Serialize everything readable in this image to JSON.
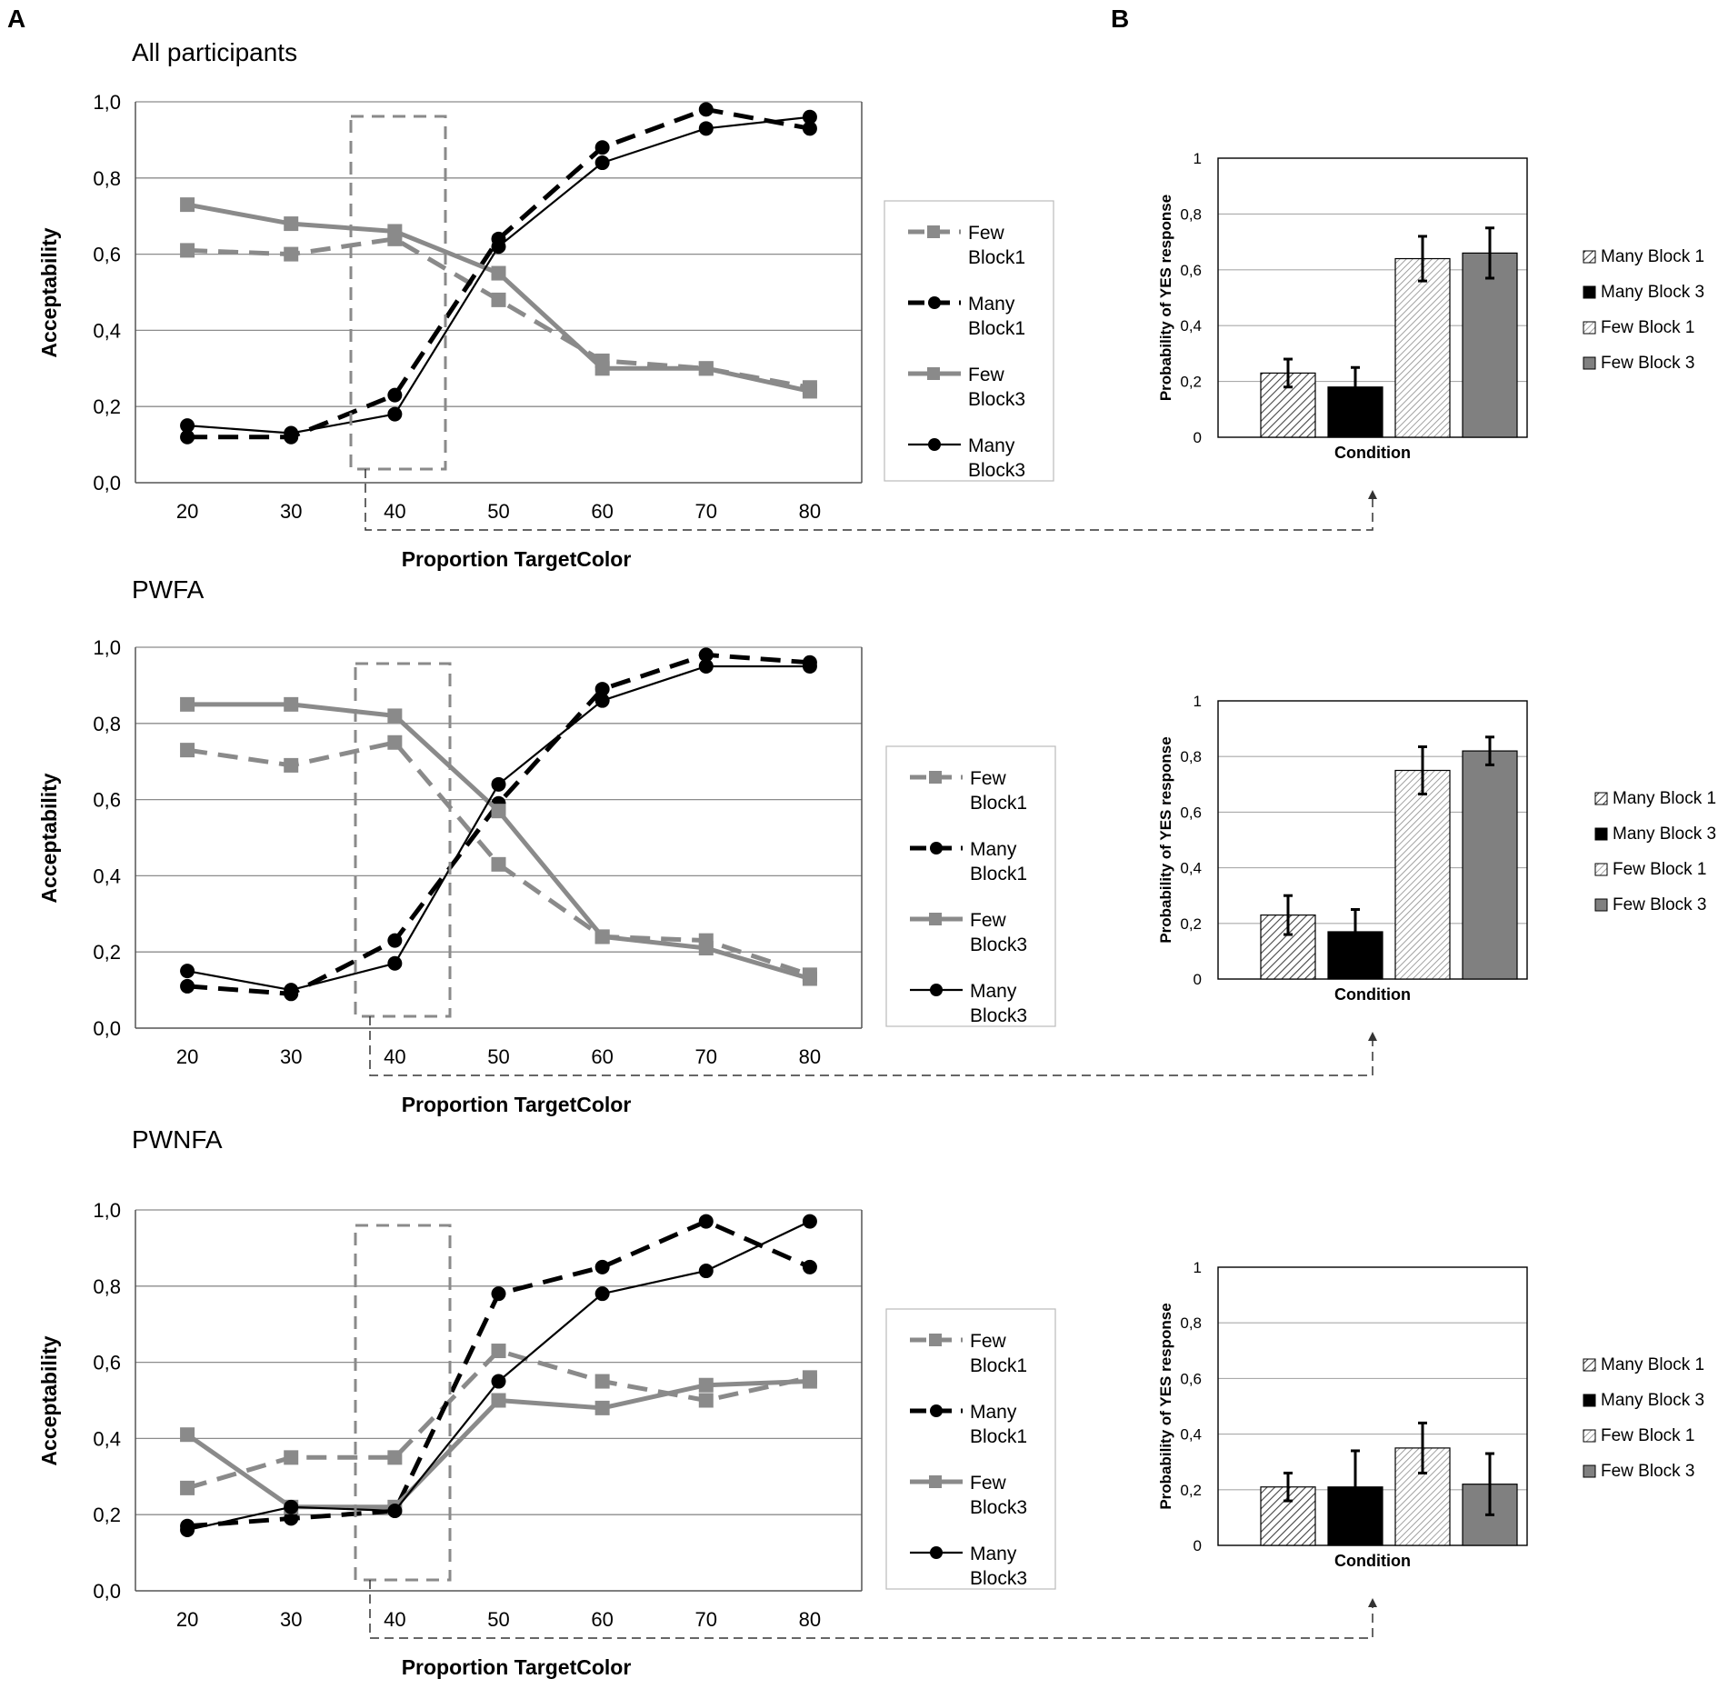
{
  "panel_labels": {
    "a": "A",
    "b": "B"
  },
  "colors": {
    "gray": "#8a8a8a",
    "black": "#000000",
    "grid": "#8c8c8c",
    "dashbox": "#8a8a8a",
    "bar_dark_gray": "#808080"
  },
  "chart_data": [
    {
      "type": "line",
      "id": "line-all",
      "title": "All participants",
      "xlabel": "Proportion TargetColor",
      "ylabel": "Acceptability",
      "categories": [
        "20",
        "30",
        "40",
        "50",
        "60",
        "70",
        "80"
      ],
      "ylim": [
        0,
        1
      ],
      "yticks": [
        "0,0",
        "0,2",
        "0,4",
        "0,6",
        "0,8",
        "1,0"
      ],
      "highlight_category": "40",
      "series": [
        {
          "name": "Few Block1",
          "legend": [
            "Few",
            "Block1"
          ],
          "values": [
            0.61,
            0.6,
            0.64,
            0.48,
            0.32,
            0.3,
            0.25
          ]
        },
        {
          "name": "Many Block1",
          "legend": [
            "Many",
            "Block1"
          ],
          "values": [
            0.12,
            0.12,
            0.23,
            0.64,
            0.88,
            0.98,
            0.93
          ]
        },
        {
          "name": "Few Block3",
          "legend": [
            "Few",
            "Block3"
          ],
          "values": [
            0.73,
            0.68,
            0.66,
            0.55,
            0.3,
            0.3,
            0.24
          ]
        },
        {
          "name": "Many Block3",
          "legend": [
            "Many",
            "Block3"
          ],
          "values": [
            0.15,
            0.13,
            0.18,
            0.62,
            0.84,
            0.93,
            0.96
          ]
        }
      ]
    },
    {
      "type": "line",
      "id": "line-pwfa",
      "title": "PWFA",
      "xlabel": "Proportion TargetColor",
      "ylabel": "Acceptability",
      "categories": [
        "20",
        "30",
        "40",
        "50",
        "60",
        "70",
        "80"
      ],
      "ylim": [
        0,
        1
      ],
      "yticks": [
        "0,0",
        "0,2",
        "0,4",
        "0,6",
        "0,8",
        "1,0"
      ],
      "highlight_category": "40",
      "series": [
        {
          "name": "Few Block1",
          "legend": [
            "Few",
            "Block1"
          ],
          "values": [
            0.73,
            0.69,
            0.75,
            0.43,
            0.24,
            0.23,
            0.14
          ]
        },
        {
          "name": "Many Block1",
          "legend": [
            "Many",
            "Block1"
          ],
          "values": [
            0.11,
            0.09,
            0.23,
            0.59,
            0.89,
            0.98,
            0.96
          ]
        },
        {
          "name": "Few Block3",
          "legend": [
            "Few",
            "Block3"
          ],
          "values": [
            0.85,
            0.85,
            0.82,
            0.57,
            0.24,
            0.21,
            0.13
          ]
        },
        {
          "name": "Many Block3",
          "legend": [
            "Many",
            "Block3"
          ],
          "values": [
            0.15,
            0.1,
            0.17,
            0.64,
            0.86,
            0.95,
            0.95
          ]
        }
      ]
    },
    {
      "type": "line",
      "id": "line-pwnfa",
      "title": "PWNFA",
      "xlabel": "Proportion TargetColor",
      "ylabel": "Acceptability",
      "categories": [
        "20",
        "30",
        "40",
        "50",
        "60",
        "70",
        "80"
      ],
      "ylim": [
        0,
        1
      ],
      "yticks": [
        "0,0",
        "0,2",
        "0,4",
        "0,6",
        "0,8",
        "1,0"
      ],
      "highlight_category": "40",
      "series": [
        {
          "name": "Few Block1",
          "legend": [
            "Few",
            "Block1"
          ],
          "values": [
            0.27,
            0.35,
            0.35,
            0.63,
            0.55,
            0.5,
            0.56
          ]
        },
        {
          "name": "Many Block1",
          "legend": [
            "Many",
            "Block1"
          ],
          "values": [
            0.17,
            0.19,
            0.21,
            0.78,
            0.85,
            0.97,
            0.85
          ]
        },
        {
          "name": "Few Block3",
          "legend": [
            "Few",
            "Block3"
          ],
          "values": [
            0.41,
            0.22,
            0.22,
            0.5,
            0.48,
            0.54,
            0.55
          ]
        },
        {
          "name": "Many Block3",
          "legend": [
            "Many",
            "Block3"
          ],
          "values": [
            0.16,
            0.22,
            0.21,
            0.55,
            0.78,
            0.84,
            0.97
          ]
        }
      ]
    },
    {
      "type": "bar",
      "id": "bar-all",
      "xlabel": "Condition",
      "ylabel": "Probability of YES response",
      "ylim": [
        0,
        1
      ],
      "yticks": [
        "0",
        "0,2",
        "0,4",
        "0,6",
        "0,8",
        "1"
      ],
      "categories": [
        "Many Block 1",
        "Many Block 3",
        "Few Block 1",
        "Few Block 3"
      ],
      "values": [
        0.23,
        0.18,
        0.64,
        0.66
      ],
      "errors": [
        0.05,
        0.07,
        0.08,
        0.09
      ]
    },
    {
      "type": "bar",
      "id": "bar-pwfa",
      "xlabel": "Condition",
      "ylabel": "Probability of YES response",
      "ylim": [
        0,
        1
      ],
      "yticks": [
        "0",
        "0,2",
        "0,4",
        "0,6",
        "0,8",
        "1"
      ],
      "categories": [
        "Many Block 1",
        "Many Block 3",
        "Few Block 1",
        "Few Block 3"
      ],
      "values": [
        0.23,
        0.17,
        0.75,
        0.82
      ],
      "errors": [
        0.07,
        0.08,
        0.085,
        0.05
      ]
    },
    {
      "type": "bar",
      "id": "bar-pwnfa",
      "xlabel": "Condition",
      "ylabel": "Probability of YES response",
      "ylim": [
        0,
        1
      ],
      "yticks": [
        "0",
        "0,2",
        "0,4",
        "0,6",
        "0,8",
        "1"
      ],
      "categories": [
        "Many Block 1",
        "Many Block 3",
        "Few Block 1",
        "Few Block 3"
      ],
      "values": [
        0.21,
        0.21,
        0.35,
        0.22
      ],
      "errors": [
        0.05,
        0.13,
        0.09,
        0.11
      ]
    }
  ]
}
